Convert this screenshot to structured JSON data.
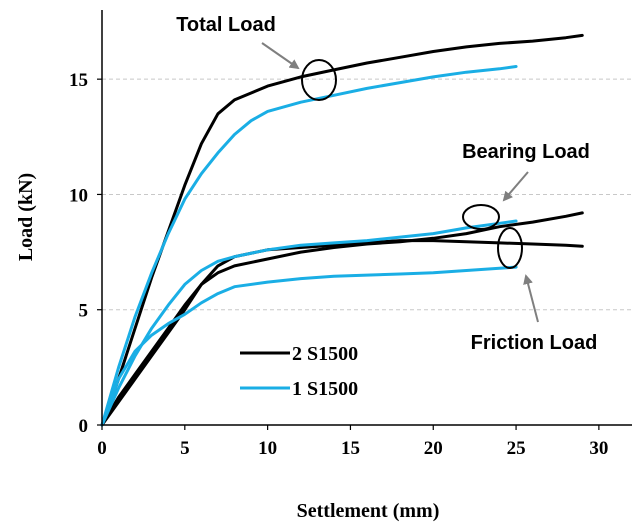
{
  "chart_data": {
    "type": "line",
    "title": "",
    "xlabel": "Settlement (mm)",
    "ylabel": "Load (kN)",
    "xlim": [
      0,
      32
    ],
    "ylim": [
      0,
      18
    ],
    "xticks": [
      0,
      5,
      10,
      15,
      20,
      25,
      30
    ],
    "yticks": [
      0,
      5,
      10,
      15
    ],
    "grid": "horizontal dashed at major y ticks",
    "legend_position": "lower-center",
    "series": [
      {
        "name": "2 S1500",
        "color": "#000000",
        "curves": [
          {
            "role": "total",
            "x": [
              0,
              1,
              2,
              3,
              4,
              5,
              6,
              7,
              8,
              9,
              10,
              12,
              14,
              16,
              18,
              20,
              22,
              24,
              26,
              28,
              29
            ],
            "y": [
              0,
              2.0,
              4.2,
              6.4,
              8.4,
              10.4,
              12.2,
              13.5,
              14.1,
              14.4,
              14.7,
              15.1,
              15.4,
              15.7,
              15.95,
              16.2,
              16.4,
              16.55,
              16.65,
              16.8,
              16.9
            ]
          },
          {
            "role": "bearing",
            "x": [
              0,
              1,
              2,
              3,
              4,
              5,
              6,
              7,
              8,
              10,
              12,
              14,
              16,
              18,
              20,
              22,
              24,
              26,
              28,
              29
            ],
            "y": [
              0,
              1.2,
              2.2,
              3.2,
              4.2,
              5.2,
              6.1,
              6.6,
              6.9,
              7.2,
              7.5,
              7.7,
              7.85,
              7.95,
              8.1,
              8.3,
              8.6,
              8.8,
              9.05,
              9.2
            ]
          },
          {
            "role": "friction",
            "x": [
              0,
              1,
              2,
              3,
              4,
              5,
              6,
              7,
              8,
              10,
              12,
              14,
              16,
              18,
              20,
              22,
              24,
              26,
              28,
              29
            ],
            "y": [
              0,
              1.0,
              2.0,
              3.0,
              4.0,
              5.0,
              6.1,
              6.9,
              7.3,
              7.6,
              7.7,
              7.8,
              7.9,
              8.0,
              8.0,
              7.95,
              7.9,
              7.85,
              7.8,
              7.75
            ]
          }
        ]
      },
      {
        "name": "1 S1500",
        "color": "#1aaee5",
        "curves": [
          {
            "role": "total",
            "x": [
              0,
              1,
              2,
              3,
              4,
              5,
              6,
              7,
              8,
              9,
              10,
              12,
              14,
              16,
              18,
              20,
              22,
              24,
              25
            ],
            "y": [
              0,
              2.5,
              4.7,
              6.6,
              8.3,
              9.8,
              10.9,
              11.8,
              12.6,
              13.2,
              13.6,
              14.0,
              14.3,
              14.6,
              14.85,
              15.1,
              15.3,
              15.45,
              15.55
            ]
          },
          {
            "role": "bearing",
            "x": [
              0,
              1,
              2,
              3,
              4,
              5,
              6,
              7,
              8,
              10,
              12,
              14,
              16,
              18,
              20,
              22,
              24,
              25
            ],
            "y": [
              0,
              1.6,
              3.0,
              4.2,
              5.2,
              6.1,
              6.7,
              7.1,
              7.3,
              7.6,
              7.8,
              7.9,
              8.0,
              8.15,
              8.3,
              8.55,
              8.75,
              8.85
            ]
          },
          {
            "role": "friction",
            "x": [
              0,
              1,
              2,
              3,
              4,
              5,
              6,
              7,
              8,
              10,
              12,
              14,
              16,
              18,
              20,
              22,
              24,
              25
            ],
            "y": [
              0,
              2.0,
              3.2,
              3.9,
              4.4,
              4.8,
              5.3,
              5.7,
              6.0,
              6.2,
              6.35,
              6.45,
              6.5,
              6.55,
              6.6,
              6.7,
              6.8,
              6.85
            ]
          }
        ]
      }
    ],
    "annotations": [
      {
        "text": "Total Load",
        "target": [
          13.5,
          15.0
        ]
      },
      {
        "text": "Bearing Load",
        "target": [
          23.0,
          8.9
        ]
      },
      {
        "text": "Friction Load",
        "target": [
          24.8,
          7.3
        ]
      }
    ]
  }
}
